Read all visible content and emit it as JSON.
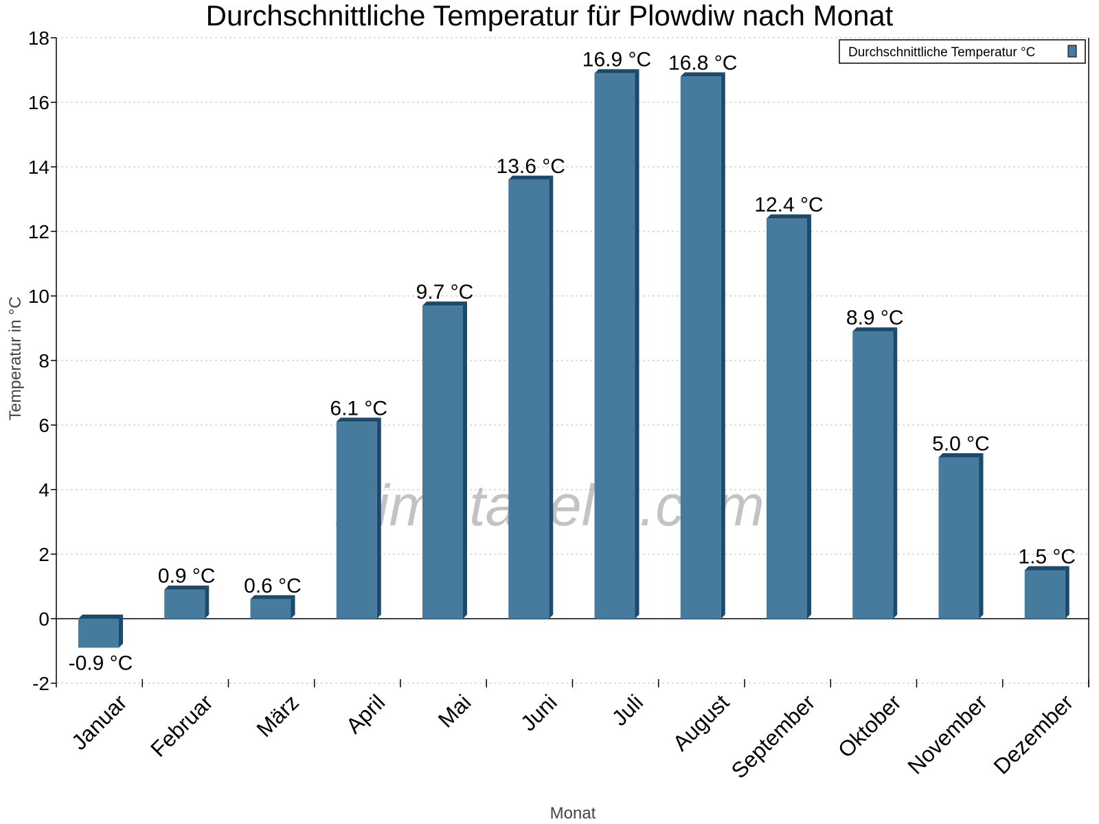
{
  "chart_data": {
    "type": "bar",
    "title": "Durchschnittliche Temperatur für Plowdiw nach Monat",
    "xlabel": "Monat",
    "ylabel": "Temperatur in °C",
    "categories": [
      "Januar",
      "Februar",
      "März",
      "April",
      "Mai",
      "Juni",
      "Juli",
      "August",
      "September",
      "Oktober",
      "November",
      "Dezember"
    ],
    "series": [
      {
        "name": "Durchschnittliche Temperatur °C",
        "values": [
          -0.9,
          0.9,
          0.6,
          6.1,
          9.7,
          13.6,
          16.9,
          16.8,
          12.4,
          8.9,
          5.0,
          1.5
        ]
      }
    ],
    "data_labels": [
      "-0.9 °C",
      "0.9 °C",
      "0.6 °C",
      "6.1 °C",
      "9.7 °C",
      "13.6 °C",
      "16.9 °C",
      "16.8 °C",
      "12.4 °C",
      "8.9 °C",
      "5.0 °C",
      "1.5 °C"
    ],
    "ylim": [
      -2,
      18
    ],
    "yticks": [
      -2,
      0,
      2,
      4,
      6,
      8,
      10,
      12,
      14,
      16,
      18
    ],
    "grid": true,
    "legend": "top-right",
    "colors": {
      "bar": "#467b9d",
      "bar_shade": "#1a4a6c"
    },
    "watermark": "klimatabelle.com"
  }
}
